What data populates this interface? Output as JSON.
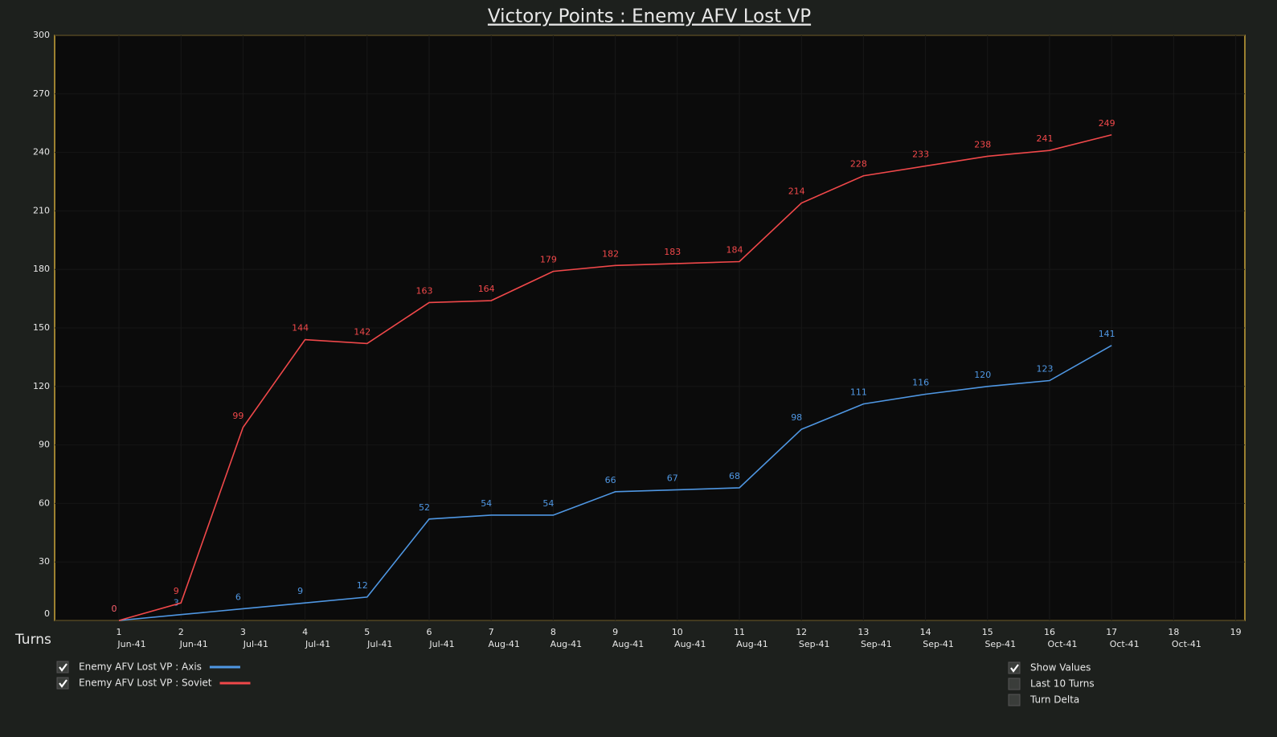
{
  "chart_data": {
    "type": "line",
    "title": "Victory Points : Enemy AFV Lost VP",
    "x_label": "Turns",
    "categories": [
      "1",
      "2",
      "3",
      "4",
      "5",
      "6",
      "7",
      "8",
      "9",
      "10",
      "11",
      "12",
      "13",
      "14",
      "15",
      "16",
      "17",
      "18",
      "19"
    ],
    "category_dates": [
      "Jun-41",
      "Jun-41",
      "Jul-41",
      "Jul-41",
      "Jul-41",
      "Jul-41",
      "Aug-41",
      "Aug-41",
      "Aug-41",
      "Aug-41",
      "Aug-41",
      "Sep-41",
      "Sep-41",
      "Sep-41",
      "Sep-41",
      "Oct-41",
      "Oct-41",
      "Oct-41",
      null
    ],
    "series": [
      {
        "name": "Enemy AFV Lost VP : Axis",
        "color": "#4f97e3",
        "checked": true,
        "values": [
          0,
          3,
          6,
          9,
          12,
          52,
          54,
          54,
          66,
          67,
          68,
          98,
          111,
          116,
          120,
          123,
          141,
          null,
          null
        ]
      },
      {
        "name": "Enemy AFV Lost VP : Soviet",
        "color": "#f0484a",
        "checked": true,
        "values": [
          0,
          9,
          99,
          144,
          142,
          163,
          164,
          179,
          182,
          183,
          184,
          214,
          228,
          233,
          238,
          241,
          249,
          null,
          null
        ]
      }
    ],
    "ylim": [
      0,
      300
    ],
    "yticks": [
      0,
      30,
      60,
      90,
      120,
      150,
      180,
      210,
      240,
      270,
      300
    ],
    "grid": true,
    "show_values": true,
    "controls": [
      {
        "label": "Show Values",
        "checked": true
      },
      {
        "label": "Last 10 Turns",
        "checked": false
      },
      {
        "label": "Turn Delta",
        "checked": false
      }
    ]
  }
}
